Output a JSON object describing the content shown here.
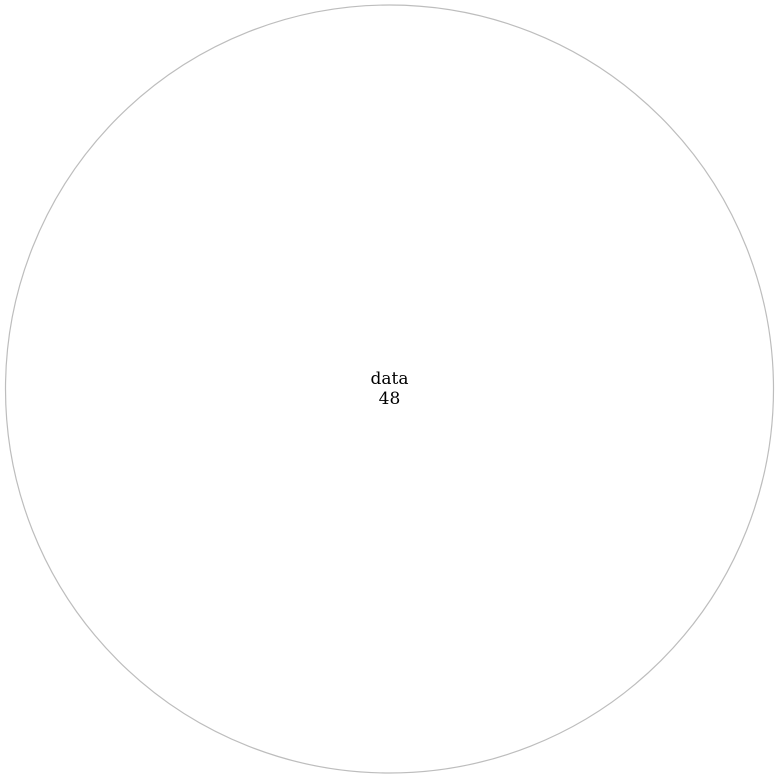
{
  "diagram": {
    "type": "circle-packing",
    "root": {
      "name": "data",
      "value": "48"
    },
    "colors": {
      "background": "#ffffff",
      "node_stroke": "#bdbdbd",
      "node_fill": "#ffffff",
      "label": "#000000"
    }
  }
}
